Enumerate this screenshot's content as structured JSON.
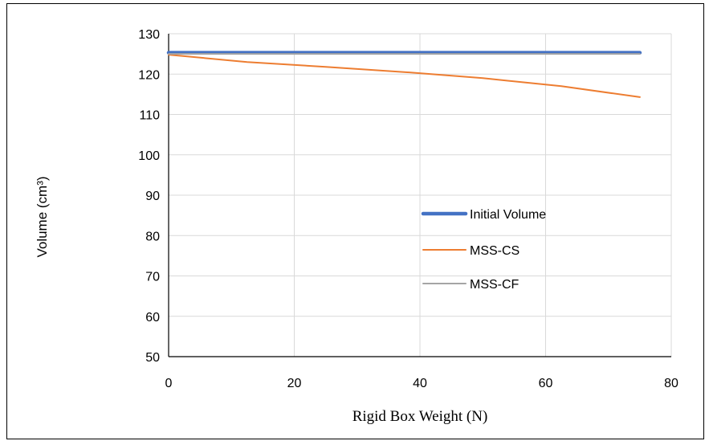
{
  "chart_data": {
    "type": "line",
    "title": "",
    "xlabel": "Rigid Box Weight (N)",
    "ylabel": "Volume (cm³)",
    "xlim": [
      0,
      80
    ],
    "ylim": [
      50,
      130
    ],
    "xticks": [
      0,
      20,
      40,
      60,
      80
    ],
    "yticks": [
      50,
      60,
      70,
      80,
      90,
      100,
      110,
      120,
      130
    ],
    "grid": true,
    "legend_position": "center-right",
    "series": [
      {
        "name": "Initial Volume",
        "color": "#4472C4",
        "x": [
          0,
          75
        ],
        "y": [
          125.3,
          125.3
        ]
      },
      {
        "name": "MSS-CS",
        "color": "#ED7D31",
        "x": [
          0,
          12.5,
          25,
          37.5,
          50,
          62.5,
          75
        ],
        "y": [
          124.8,
          123.0,
          121.8,
          120.5,
          119.0,
          117.0,
          114.3
        ]
      },
      {
        "name": "MSS-CF",
        "color": "#A5A5A5",
        "x": [
          0,
          75
        ],
        "y": [
          125.0,
          125.0
        ]
      }
    ]
  }
}
